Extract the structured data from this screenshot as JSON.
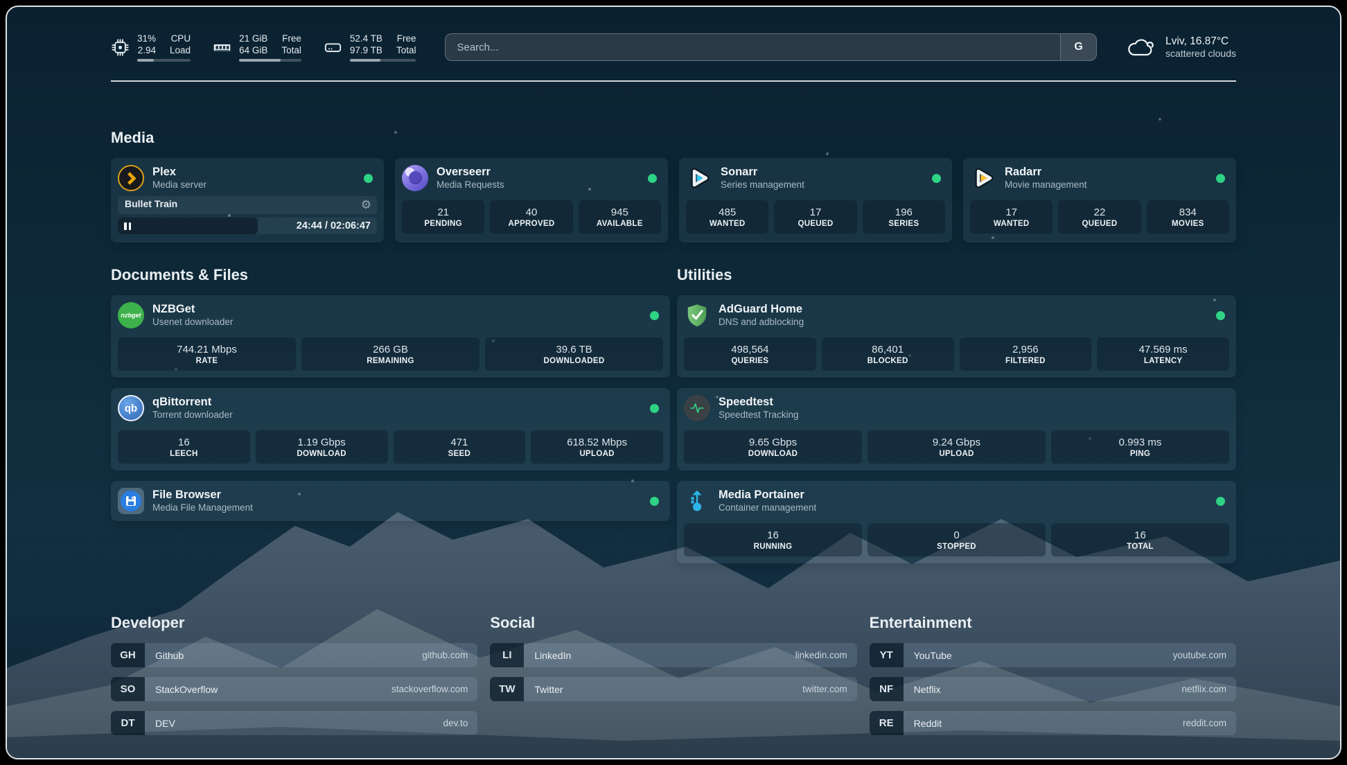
{
  "colors": {
    "status_online": "#2ed385",
    "plex_gold": "#dba016",
    "sonarr_blue": "#35c5f4",
    "radarr_orange": "#ffc230",
    "nzbget_green": "#3db14b",
    "adguard_green": "#5fae5e",
    "speedtest_green": "#2fd98c",
    "portainer_blue": "#2fb4e9"
  },
  "topbar": {
    "resources": [
      {
        "values": [
          "31%",
          "2.94"
        ],
        "labels": [
          "CPU",
          "Load"
        ],
        "percent": 31
      },
      {
        "values": [
          "21 GiB",
          "64 GiB"
        ],
        "labels": [
          "Free",
          "Total"
        ],
        "percent": 67
      },
      {
        "values": [
          "52.4 TB",
          "97.9 TB"
        ],
        "labels": [
          "Free",
          "Total"
        ],
        "percent": 46
      }
    ],
    "search": {
      "placeholder": "Search...",
      "provider_button": "G"
    },
    "weather": {
      "title": "Lviv, 16.87°C",
      "subtitle": "scattered clouds"
    }
  },
  "sections": {
    "media": {
      "title": "Media"
    },
    "documents": {
      "title": "Documents & Files"
    },
    "utilities": {
      "title": "Utilities"
    }
  },
  "services": {
    "plex": {
      "name": "Plex",
      "description": "Media server",
      "now_playing": {
        "title": "Bullet Train",
        "time": "24:44 / 02:06:47"
      }
    },
    "overseerr": {
      "name": "Overseerr",
      "description": "Media Requests",
      "stats": [
        {
          "value": "21",
          "label": "PENDING"
        },
        {
          "value": "40",
          "label": "APPROVED"
        },
        {
          "value": "945",
          "label": "AVAILABLE"
        }
      ]
    },
    "sonarr": {
      "name": "Sonarr",
      "description": "Series management",
      "stats": [
        {
          "value": "485",
          "label": "WANTED"
        },
        {
          "value": "17",
          "label": "QUEUED"
        },
        {
          "value": "196",
          "label": "SERIES"
        }
      ]
    },
    "radarr": {
      "name": "Radarr",
      "description": "Movie management",
      "stats": [
        {
          "value": "17",
          "label": "WANTED"
        },
        {
          "value": "22",
          "label": "QUEUED"
        },
        {
          "value": "834",
          "label": "MOVIES"
        }
      ]
    },
    "nzbget": {
      "name": "NZBGet",
      "description": "Usenet downloader",
      "icon_text": "nzbget",
      "stats": [
        {
          "value": "744.21 Mbps",
          "label": "RATE"
        },
        {
          "value": "266 GB",
          "label": "REMAINING"
        },
        {
          "value": "39.6 TB",
          "label": "DOWNLOADED"
        }
      ]
    },
    "qbittorrent": {
      "name": "qBittorrent",
      "description": "Torrent downloader",
      "icon_text": "qb",
      "stats": [
        {
          "value": "16",
          "label": "LEECH"
        },
        {
          "value": "1.19 Gbps",
          "label": "DOWNLOAD"
        },
        {
          "value": "471",
          "label": "SEED"
        },
        {
          "value": "618.52 Mbps",
          "label": "UPLOAD"
        }
      ]
    },
    "filebrowser": {
      "name": "File Browser",
      "description": "Media File Management"
    },
    "adguard": {
      "name": "AdGuard Home",
      "description": "DNS and adblocking",
      "stats": [
        {
          "value": "498,564",
          "label": "QUERIES"
        },
        {
          "value": "86,401",
          "label": "BLOCKED"
        },
        {
          "value": "2,956",
          "label": "FILTERED"
        },
        {
          "value": "47.569 ms",
          "label": "LATENCY"
        }
      ]
    },
    "speedtest": {
      "name": "Speedtest",
      "description": "Speedtest Tracking",
      "stats": [
        {
          "value": "9.65 Gbps",
          "label": "DOWNLOAD"
        },
        {
          "value": "9.24 Gbps",
          "label": "UPLOAD"
        },
        {
          "value": "0.993 ms",
          "label": "PING"
        }
      ]
    },
    "portainer": {
      "name": "Media Portainer",
      "description": "Container management",
      "stats": [
        {
          "value": "16",
          "label": "RUNNING"
        },
        {
          "value": "0",
          "label": "STOPPED"
        },
        {
          "value": "16",
          "label": "TOTAL"
        }
      ]
    }
  },
  "bookmarks": {
    "developer": {
      "title": "Developer",
      "items": [
        {
          "abbr": "GH",
          "name": "Github",
          "url": "github.com"
        },
        {
          "abbr": "SO",
          "name": "StackOverflow",
          "url": "stackoverflow.com"
        },
        {
          "abbr": "DT",
          "name": "DEV",
          "url": "dev.to"
        }
      ]
    },
    "social": {
      "title": "Social",
      "items": [
        {
          "abbr": "LI",
          "name": "LinkedIn",
          "url": "linkedin.com"
        },
        {
          "abbr": "TW",
          "name": "Twitter",
          "url": "twitter.com"
        }
      ]
    },
    "entertainment": {
      "title": "Entertainment",
      "items": [
        {
          "abbr": "YT",
          "name": "YouTube",
          "url": "youtube.com"
        },
        {
          "abbr": "NF",
          "name": "Netflix",
          "url": "netflix.com"
        },
        {
          "abbr": "RE",
          "name": "Reddit",
          "url": "reddit.com"
        }
      ]
    }
  }
}
